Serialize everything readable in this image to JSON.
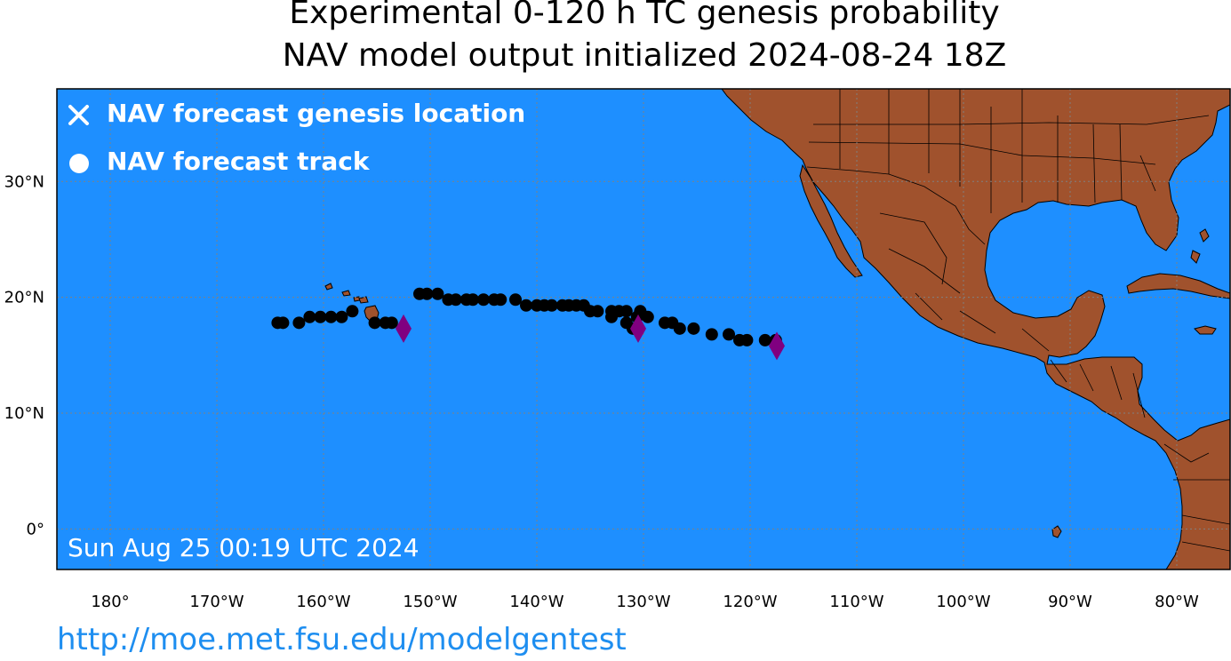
{
  "header": {
    "title_line1": "Experimental 0-120 h TC genesis probability",
    "title_line2": "NAV model output initialized 2024-08-24 18Z"
  },
  "legend": {
    "genesis_label": "NAV forecast genesis location",
    "track_label": "NAV forecast track"
  },
  "timestamp": "Sun Aug 25 00:19 UTC 2024",
  "footer_url": "http://moe.met.fsu.edu/modelgentest",
  "colors": {
    "ocean": "#1e8fff",
    "land": "#a0522d",
    "track": "#000000",
    "genesis": "#800080",
    "grid": "#808080"
  },
  "map": {
    "lon_range": [
      -185,
      -75
    ],
    "lat_range": [
      -3.5,
      38
    ],
    "lon_ticks": [
      {
        "lon": -180,
        "label": "180°"
      },
      {
        "lon": -170,
        "label": "170°W"
      },
      {
        "lon": -160,
        "label": "160°W"
      },
      {
        "lon": -150,
        "label": "150°W"
      },
      {
        "lon": -140,
        "label": "140°W"
      },
      {
        "lon": -130,
        "label": "130°W"
      },
      {
        "lon": -120,
        "label": "120°W"
      },
      {
        "lon": -110,
        "label": "110°W"
      },
      {
        "lon": -100,
        "label": "100°W"
      },
      {
        "lon": -90,
        "label": "90°W"
      },
      {
        "lon": -80,
        "label": "80°W"
      }
    ],
    "lat_ticks": [
      {
        "lat": 30,
        "label": "30°N"
      },
      {
        "lat": 20,
        "label": "20°N"
      },
      {
        "lat": 10,
        "label": "10°N"
      },
      {
        "lat": 0,
        "label": "0°"
      }
    ],
    "genesis_points": [
      {
        "lon": -152.5,
        "lat": 17.3
      },
      {
        "lon": -130.5,
        "lat": 17.3
      },
      {
        "lon": -117.5,
        "lat": 15.8
      }
    ],
    "track_points": [
      {
        "lon": -164.3,
        "lat": 17.8
      },
      {
        "lon": -163.8,
        "lat": 17.8
      },
      {
        "lon": -162.3,
        "lat": 17.8
      },
      {
        "lon": -161.3,
        "lat": 18.3
      },
      {
        "lon": -160.3,
        "lat": 18.3
      },
      {
        "lon": -159.3,
        "lat": 18.3
      },
      {
        "lon": -158.3,
        "lat": 18.3
      },
      {
        "lon": -157.3,
        "lat": 18.8
      },
      {
        "lon": -155.2,
        "lat": 17.8
      },
      {
        "lon": -154.2,
        "lat": 17.8
      },
      {
        "lon": -153.6,
        "lat": 17.8
      },
      {
        "lon": -151.0,
        "lat": 20.3
      },
      {
        "lon": -150.3,
        "lat": 20.3
      },
      {
        "lon": -149.3,
        "lat": 20.3
      },
      {
        "lon": -148.3,
        "lat": 19.8
      },
      {
        "lon": -147.6,
        "lat": 19.8
      },
      {
        "lon": -146.6,
        "lat": 19.8
      },
      {
        "lon": -146.0,
        "lat": 19.8
      },
      {
        "lon": -145.0,
        "lat": 19.8
      },
      {
        "lon": -144.0,
        "lat": 19.8
      },
      {
        "lon": -143.4,
        "lat": 19.8
      },
      {
        "lon": -142.0,
        "lat": 19.8
      },
      {
        "lon": -141.0,
        "lat": 19.3
      },
      {
        "lon": -140.0,
        "lat": 19.3
      },
      {
        "lon": -139.3,
        "lat": 19.3
      },
      {
        "lon": -138.6,
        "lat": 19.3
      },
      {
        "lon": -137.6,
        "lat": 19.3
      },
      {
        "lon": -137.0,
        "lat": 19.3
      },
      {
        "lon": -136.3,
        "lat": 19.3
      },
      {
        "lon": -135.6,
        "lat": 19.3
      },
      {
        "lon": -135.0,
        "lat": 18.8
      },
      {
        "lon": -134.3,
        "lat": 18.8
      },
      {
        "lon": -133.0,
        "lat": 18.8
      },
      {
        "lon": -132.3,
        "lat": 18.8
      },
      {
        "lon": -133.0,
        "lat": 18.3
      },
      {
        "lon": -131.6,
        "lat": 18.8
      },
      {
        "lon": -130.3,
        "lat": 18.8
      },
      {
        "lon": -130.6,
        "lat": 18.3
      },
      {
        "lon": -129.6,
        "lat": 18.3
      },
      {
        "lon": -131.6,
        "lat": 17.8
      },
      {
        "lon": -131.0,
        "lat": 17.3
      },
      {
        "lon": -128.0,
        "lat": 17.8
      },
      {
        "lon": -127.3,
        "lat": 17.8
      },
      {
        "lon": -126.6,
        "lat": 17.3
      },
      {
        "lon": -125.3,
        "lat": 17.3
      },
      {
        "lon": -123.6,
        "lat": 16.8
      },
      {
        "lon": -122.0,
        "lat": 16.8
      },
      {
        "lon": -121.0,
        "lat": 16.3
      },
      {
        "lon": -120.3,
        "lat": 16.3
      },
      {
        "lon": -118.6,
        "lat": 16.3
      },
      {
        "lon": -117.6,
        "lat": 16.3
      }
    ]
  }
}
